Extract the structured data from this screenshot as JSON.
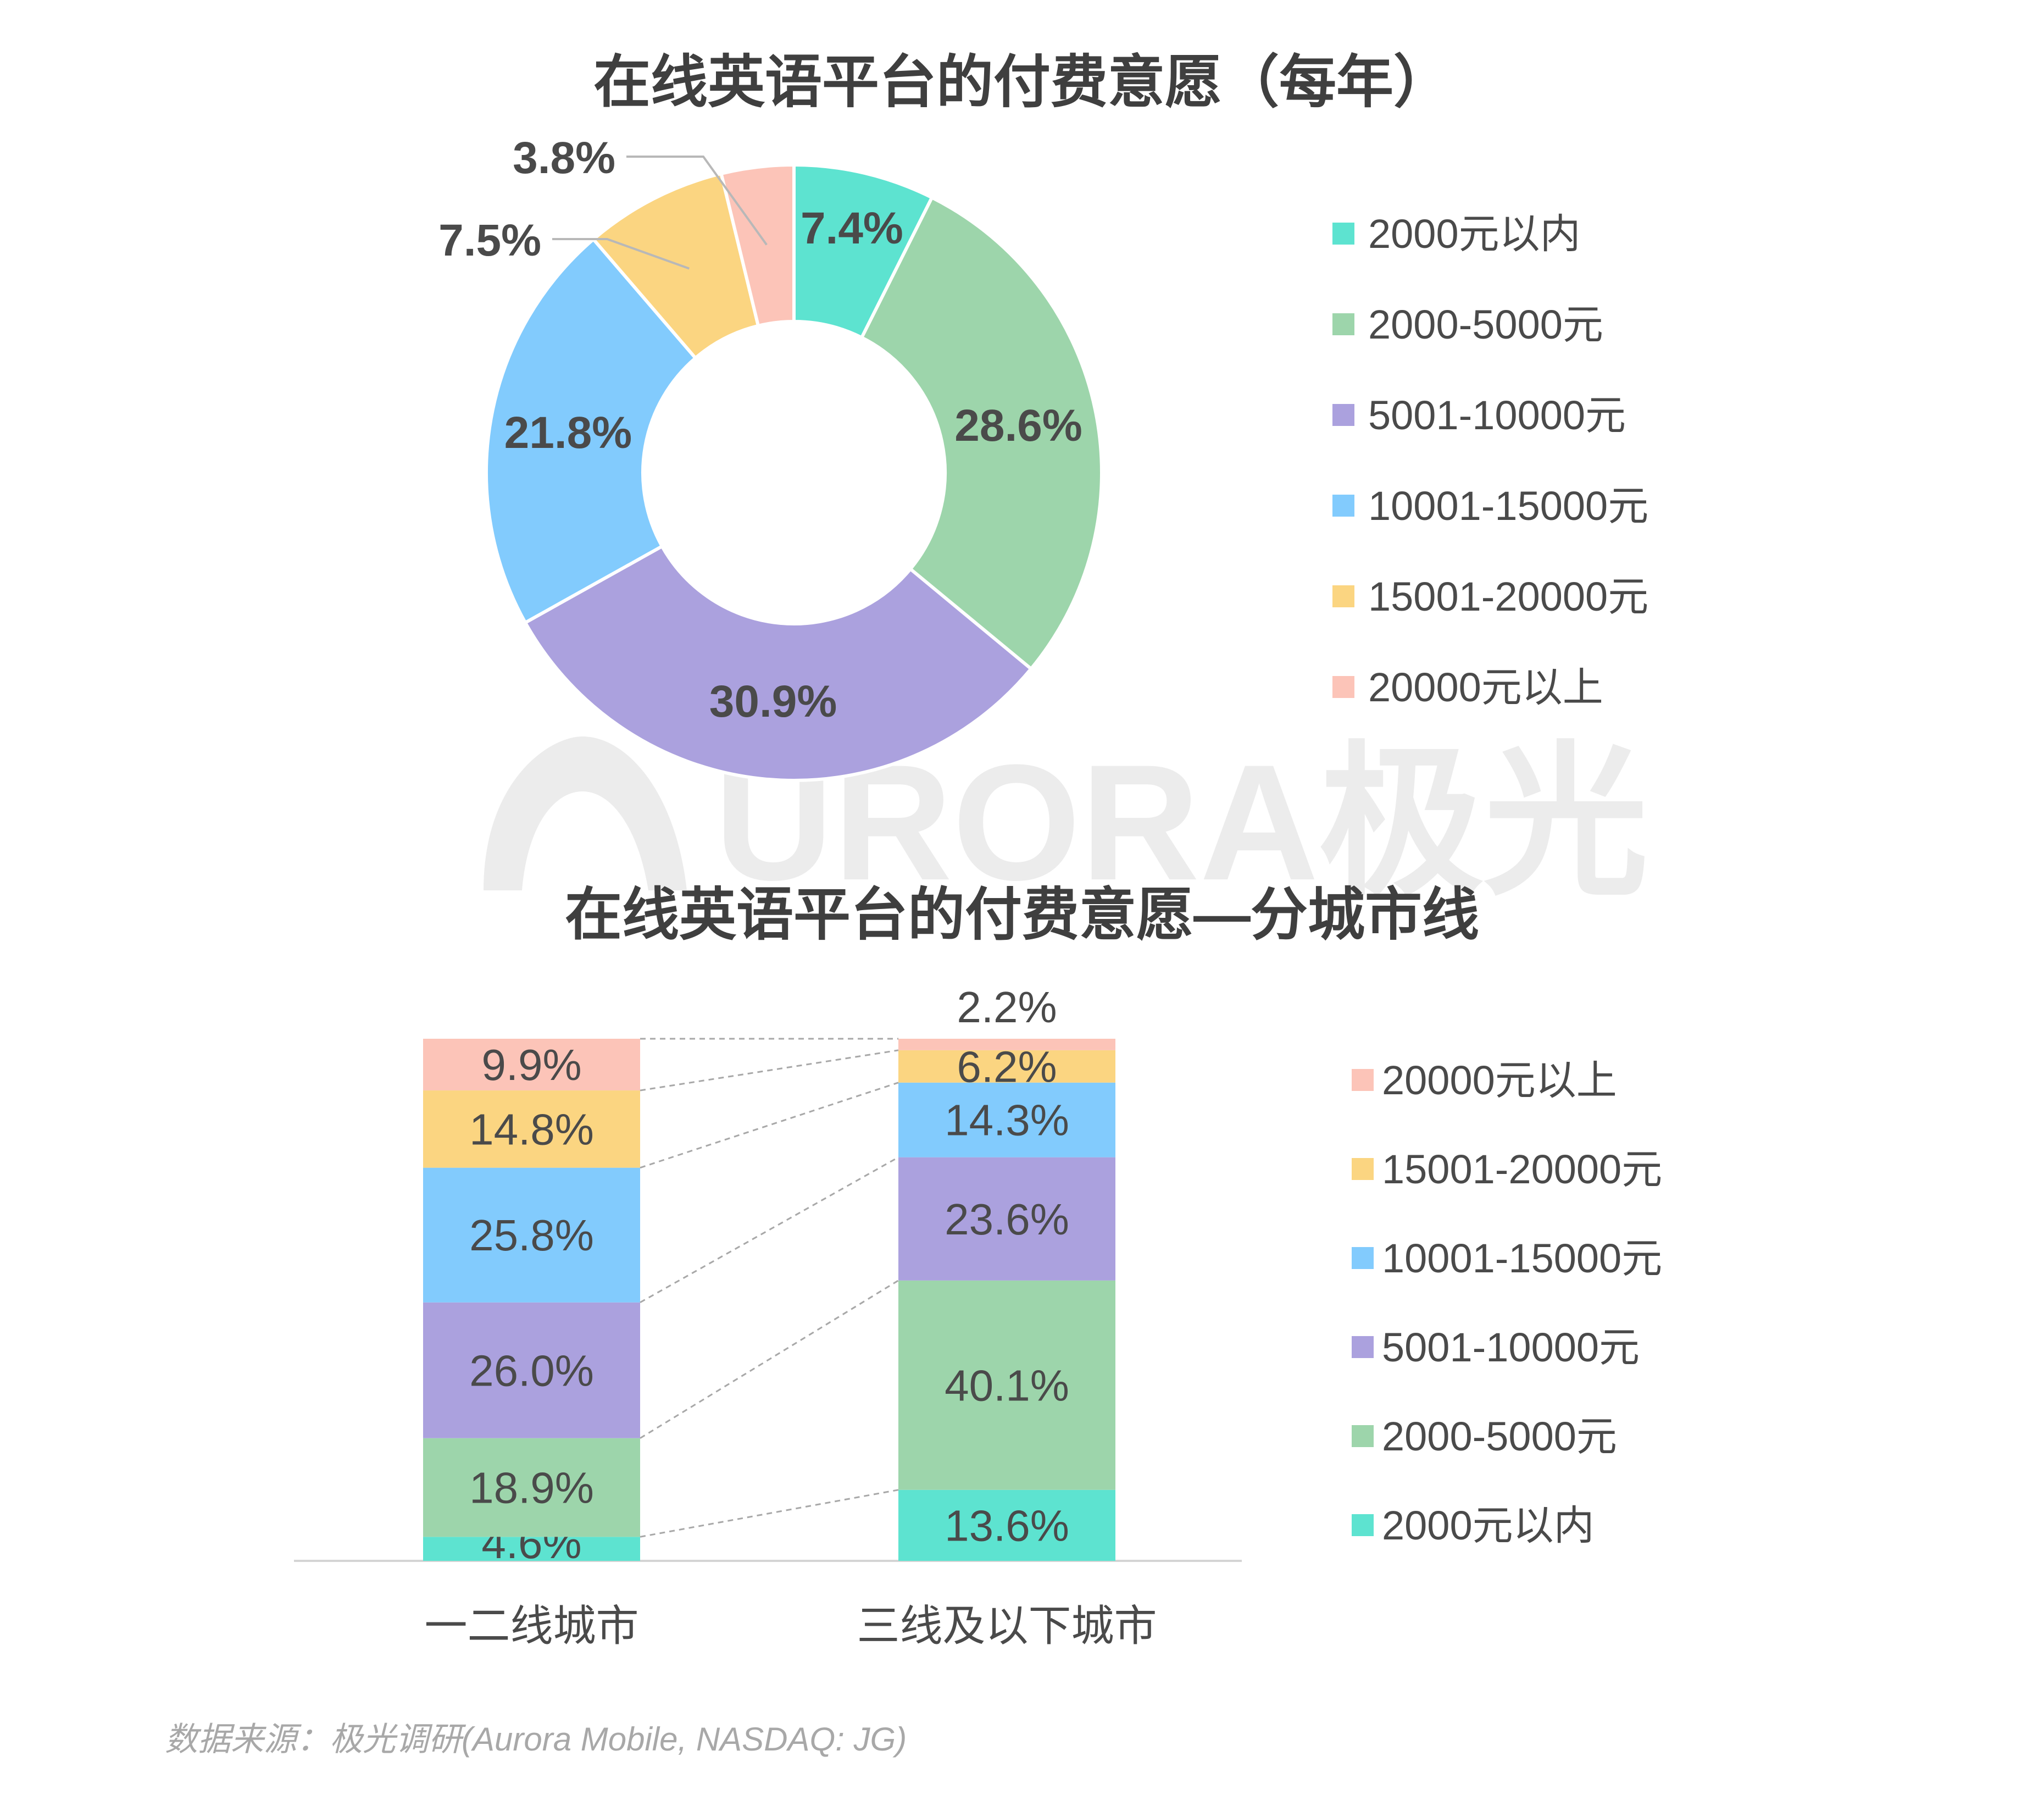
{
  "watermark": {
    "text": "URORA极光"
  },
  "source": "数据来源：极光调研(Aurora Mobile, NASDAQ: JG)",
  "chart_data": [
    {
      "type": "pie",
      "title": "在线英语平台的付费意愿（每年）",
      "donut": true,
      "categories": [
        "2000元以内",
        "2000-5000元",
        "5001-10000元",
        "10001-15000元",
        "15001-20000元",
        "20000元以上"
      ],
      "values": [
        7.4,
        28.6,
        30.9,
        21.8,
        7.5,
        3.8
      ],
      "labels": [
        "7.4%",
        "28.6%",
        "30.9%",
        "21.8%",
        "7.5%",
        "3.8%"
      ],
      "colors": [
        "#5de3d0",
        "#9dd5ab",
        "#aba1de",
        "#82cbfd",
        "#fbd581",
        "#fcc4b8"
      ],
      "legend_position": "right"
    },
    {
      "type": "bar",
      "stacked": true,
      "title": "在线英语平台的付费意愿—分城市线",
      "categories": [
        "一二线城市",
        "三线及以下城市"
      ],
      "series": [
        {
          "name": "2000元以内",
          "color": "#5de3d0",
          "values": [
            4.6,
            13.6
          ],
          "labels": [
            "4.6%",
            "13.6%"
          ]
        },
        {
          "name": "2000-5000元",
          "color": "#9dd5ab",
          "values": [
            18.9,
            40.1
          ],
          "labels": [
            "18.9%",
            "40.1%"
          ]
        },
        {
          "name": "5001-10000元",
          "color": "#aba1de",
          "values": [
            26.0,
            23.6
          ],
          "labels": [
            "26.0%",
            "23.6%"
          ]
        },
        {
          "name": "10001-15000元",
          "color": "#82cbfd",
          "values": [
            25.8,
            14.3
          ],
          "labels": [
            "25.8%",
            "14.3%"
          ]
        },
        {
          "name": "15001-20000元",
          "color": "#fbd581",
          "values": [
            14.8,
            6.2
          ],
          "labels": [
            "14.8%",
            "6.2%"
          ]
        },
        {
          "name": "20000元以上",
          "color": "#fcc4b8",
          "values": [
            9.9,
            2.2
          ],
          "labels": [
            "9.9%",
            "2.2%"
          ]
        }
      ],
      "legend_order": [
        "20000元以上",
        "15001-20000元",
        "10001-15000元",
        "5001-10000元",
        "2000-5000元",
        "2000元以内"
      ],
      "legend_position": "right",
      "ylim": [
        0,
        100
      ]
    }
  ]
}
